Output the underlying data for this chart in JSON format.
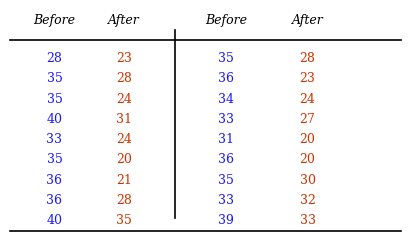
{
  "headers": [
    "Before",
    "After",
    "Before",
    "After"
  ],
  "col1_before": [
    28,
    35,
    35,
    40,
    33,
    35,
    36,
    36,
    40
  ],
  "col1_after": [
    23,
    28,
    24,
    31,
    24,
    20,
    21,
    28,
    35
  ],
  "col2_before": [
    35,
    36,
    34,
    33,
    31,
    36,
    35,
    33,
    39
  ],
  "col2_after": [
    28,
    23,
    24,
    27,
    20,
    20,
    30,
    32,
    33
  ],
  "header_color": "#000000",
  "before_color": "#1a1aff",
  "after_color": "#cc3300",
  "bg_color": "#ffffff",
  "font_size": 9,
  "header_font_size": 9
}
